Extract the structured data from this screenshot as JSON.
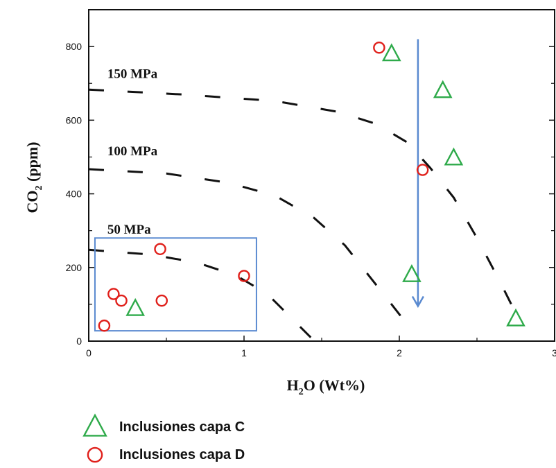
{
  "chart_data": {
    "type": "scatter",
    "xlabel": {
      "main": "H",
      "sub": "2",
      "rest": "O (Wt%)"
    },
    "ylabel": {
      "main": "CO",
      "sub": "2",
      "rest": " (ppm)"
    },
    "xlim": [
      0,
      3
    ],
    "ylim": [
      0,
      900
    ],
    "x_ticks": [
      "0",
      "1",
      "2",
      "3"
    ],
    "y_ticks": [
      "0",
      "200",
      "400",
      "600",
      "800"
    ],
    "series": [
      {
        "name": "Inclusiones capa C",
        "marker": "triangle",
        "color": "#2eaa4a",
        "points": [
          [
            1.95,
            780
          ],
          [
            2.28,
            680
          ],
          [
            2.35,
            497
          ],
          [
            2.08,
            180
          ],
          [
            0.3,
            88
          ],
          [
            2.75,
            60
          ]
        ]
      },
      {
        "name": "Inclusiones capa D",
        "marker": "circle",
        "color": "#e0201b",
        "points": [
          [
            1.87,
            797
          ],
          [
            2.15,
            465
          ],
          [
            0.46,
            250
          ],
          [
            1.0,
            177
          ],
          [
            0.16,
            128
          ],
          [
            0.21,
            110
          ],
          [
            0.47,
            110
          ],
          [
            0.1,
            42
          ]
        ]
      }
    ],
    "isobars": [
      {
        "label": "150 MPa",
        "points": [
          [
            0,
            683
          ],
          [
            0.6,
            670
          ],
          [
            1.2,
            652
          ],
          [
            1.6,
            623
          ],
          [
            1.85,
            590
          ],
          [
            2.05,
            540
          ],
          [
            2.2,
            470
          ],
          [
            2.35,
            390
          ],
          [
            2.5,
            280
          ],
          [
            2.65,
            160
          ],
          [
            2.78,
            50
          ]
        ]
      },
      {
        "label": "100 MPa",
        "points": [
          [
            0,
            467
          ],
          [
            0.5,
            455
          ],
          [
            0.9,
            430
          ],
          [
            1.2,
            395
          ],
          [
            1.45,
            335
          ],
          [
            1.65,
            260
          ],
          [
            1.8,
            180
          ],
          [
            1.95,
            100
          ],
          [
            2.08,
            30
          ]
        ]
      },
      {
        "label": "50 MPa",
        "points": [
          [
            0,
            248
          ],
          [
            0.4,
            235
          ],
          [
            0.7,
            213
          ],
          [
            0.95,
            178
          ],
          [
            1.15,
            128
          ],
          [
            1.3,
            65
          ],
          [
            1.43,
            10
          ]
        ]
      }
    ],
    "highlight_box": {
      "x": [
        0.04,
        1.08
      ],
      "y": [
        28,
        280
      ],
      "color": "#5a8ad0"
    },
    "arrow": {
      "x": 2.12,
      "y_start": 820,
      "y_end": 95,
      "color": "#5a8ad0"
    }
  }
}
